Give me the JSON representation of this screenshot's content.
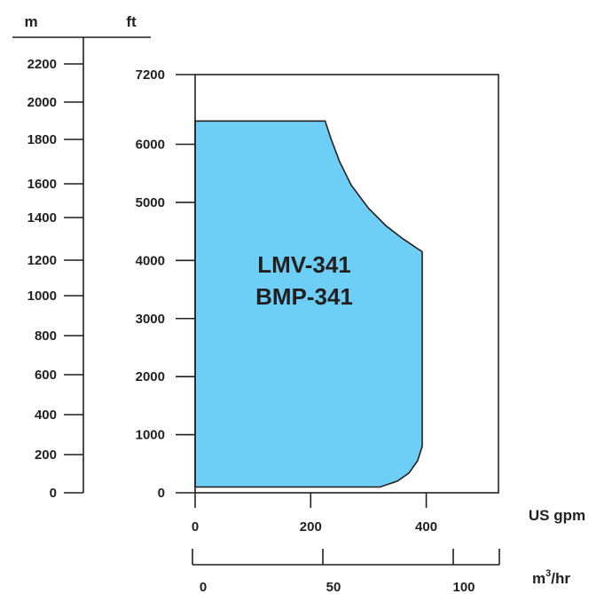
{
  "chart_data": {
    "type": "area",
    "title": "",
    "region_labels": [
      "LMV-341",
      "BMP-341"
    ],
    "fill_color": "#6dcff6",
    "outline_color": "#231f20",
    "units": {
      "head_metric": "m",
      "head_imperial": "ft",
      "flow_imperial": "US gpm",
      "flow_metric_base": "m",
      "flow_metric_sup": "3",
      "flow_metric_tail": "/hr"
    },
    "axes": {
      "head_m": {
        "ticks": [
          0,
          200,
          400,
          600,
          800,
          1000,
          1200,
          1400,
          1600,
          1800,
          2000,
          2200
        ],
        "labels": [
          "0",
          "200",
          "400",
          "600",
          "800",
          "1000",
          "1200",
          "1400",
          "1600",
          "1800",
          "2000",
          "2200"
        ]
      },
      "head_ft": {
        "range": [
          0,
          7200
        ],
        "ticks": [
          0,
          1000,
          2000,
          3000,
          4000,
          5000,
          6000,
          7200
        ],
        "labels": [
          "0",
          "1000",
          "2000",
          "3000",
          "4000",
          "5000",
          "6000",
          "7200"
        ]
      },
      "flow_gpm": {
        "range": [
          0,
          525
        ],
        "ticks": [
          0,
          200,
          400
        ],
        "labels": [
          "0",
          "200",
          "400"
        ]
      },
      "flow_m3hr": {
        "ticks": [
          0,
          50,
          100
        ],
        "labels": [
          "0",
          "50",
          "100"
        ]
      }
    },
    "envelope": {
      "x_unit": "US gpm",
      "y_unit": "ft",
      "points": [
        [
          0,
          100
        ],
        [
          0,
          6400
        ],
        [
          225,
          6400
        ],
        [
          235,
          6100
        ],
        [
          250,
          5700
        ],
        [
          270,
          5300
        ],
        [
          300,
          4900
        ],
        [
          330,
          4600
        ],
        [
          360,
          4370
        ],
        [
          393,
          4150
        ],
        [
          393,
          800
        ],
        [
          385,
          550
        ],
        [
          370,
          340
        ],
        [
          350,
          200
        ],
        [
          320,
          100
        ]
      ]
    }
  }
}
